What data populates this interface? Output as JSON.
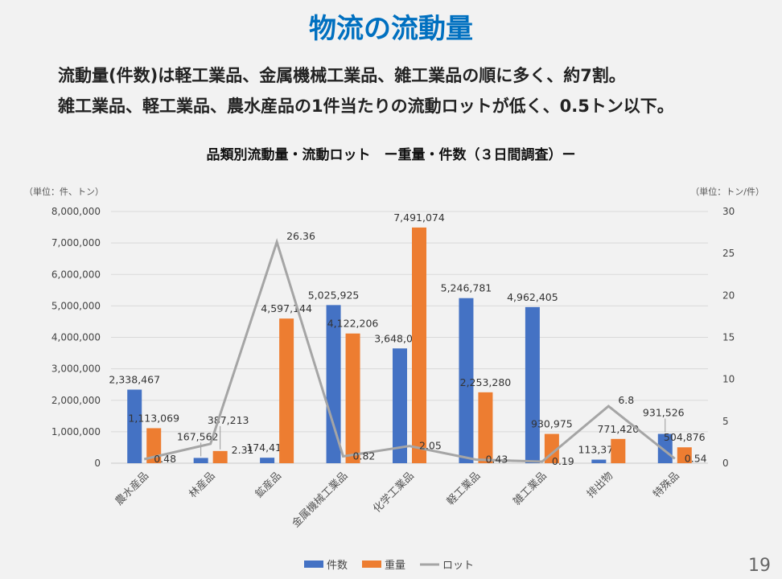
{
  "title": "物流の流動量",
  "subtitle_lines": [
    "流動量(件数)は軽工業品、金属機械工業品、雑工業品の順に多く、約7割。",
    "雑工業品、軽工業品、農水産品の1件当たりの流動ロットが低く、0.5トン以下。"
  ],
  "page_number": "19",
  "chart_data": {
    "type": "bar",
    "title": "品類別流動量・流動ロット　ー重量・件数（３日間調査）ー",
    "left_unit": "（単位：件、トン）",
    "right_unit": "（単位：トン/件）",
    "categories": [
      "農水産品",
      "林産品",
      "鉱産品",
      "金属機械工業品",
      "化学工業品",
      "軽工業品",
      "雑工業品",
      "排出物",
      "特殊品"
    ],
    "series": [
      {
        "name": "件数",
        "type": "bar",
        "axis": "left",
        "color": "#4472c4",
        "values": [
          2338467,
          167562,
          174418,
          5025925,
          3648033,
          5246781,
          4962405,
          113377,
          931526
        ],
        "labels": [
          "2,338,467",
          "167,562",
          "174,418",
          "5,025,925",
          "3,648,033",
          "5,246,781",
          "4,962,405",
          "113,377",
          "931,526"
        ]
      },
      {
        "name": "重量",
        "type": "bar",
        "axis": "left",
        "color": "#ed7d31",
        "values": [
          1113069,
          387213,
          4597144,
          4122206,
          7491074,
          2253280,
          930975,
          771420,
          504876
        ],
        "labels": [
          "1,113,069",
          "387,213",
          "4,597,144",
          "4,122,206",
          "7,491,074",
          "2,253,280",
          "930,975",
          "771,420",
          "504,876"
        ]
      },
      {
        "name": "ロット",
        "type": "line",
        "axis": "right",
        "color": "#a5a5a5",
        "values": [
          0.48,
          2.31,
          26.36,
          0.82,
          2.05,
          0.43,
          0.19,
          6.8,
          0.54
        ],
        "labels": [
          "0.48",
          "2.31",
          "26.36",
          "0.82",
          "2.05",
          "0.43",
          "0.19",
          "6.8",
          "0.54"
        ]
      }
    ],
    "left_axis": {
      "min": 0,
      "max": 8000000,
      "ticks": [
        "0",
        "1,000,000",
        "2,000,000",
        "3,000,000",
        "4,000,000",
        "5,000,000",
        "6,000,000",
        "7,000,000",
        "8,000,000"
      ]
    },
    "right_axis": {
      "min": 0,
      "max": 30,
      "ticks": [
        "0",
        "5",
        "10",
        "15",
        "20",
        "25",
        "30"
      ]
    },
    "grid": true,
    "legend": "bottom"
  }
}
